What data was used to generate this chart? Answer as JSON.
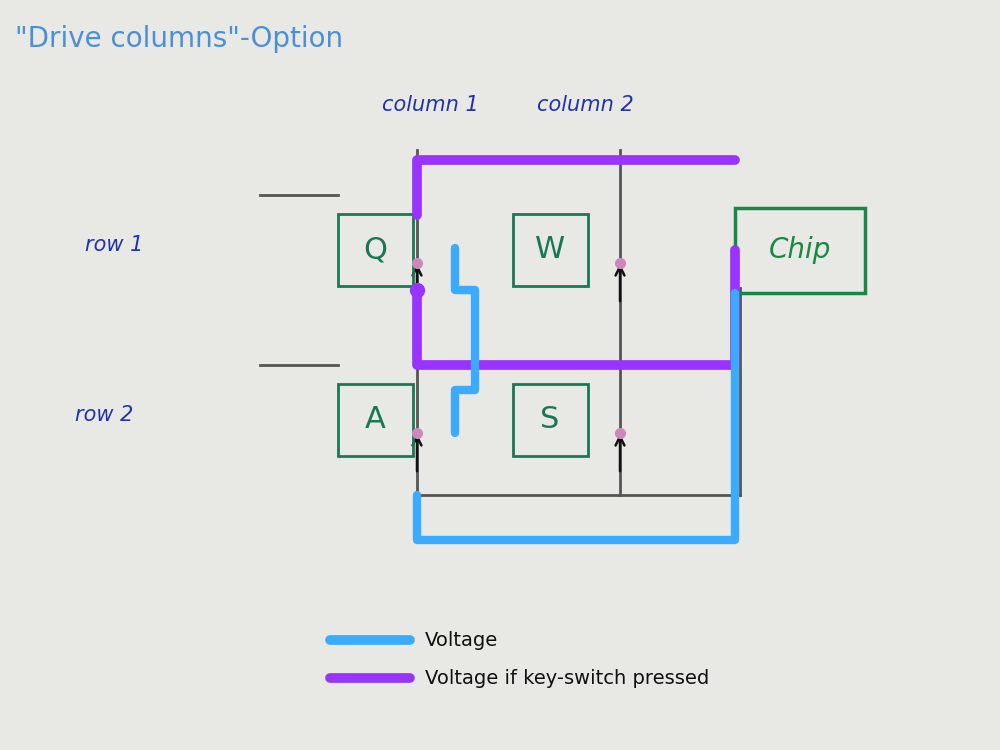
{
  "title": "\"Drive columns\"-Option",
  "title_color": "#4a90d9",
  "title_fontsize": 20,
  "bg_color": "#e8e8e4",
  "col1_label": "column 1",
  "col2_label": "column 2",
  "row1_label": "row 1",
  "row2_label": "row 2",
  "voltage_color": "#3aabff",
  "voltage_pressed_color": "#9933ff",
  "legend_voltage_label": "Voltage",
  "legend_pressed_label": "Voltage if key-switch pressed",
  "key_color": "#1a7755",
  "chip_color": "#1a8844",
  "wire_color": "#555555",
  "diode_color": "#111111",
  "dot_color": "#cc88bb"
}
